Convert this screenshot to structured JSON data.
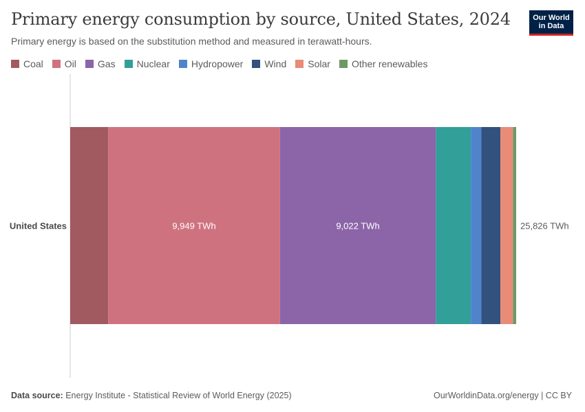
{
  "header": {
    "title": "Primary energy consumption by source, United States, 2024",
    "subtitle": "Primary energy is based on the substitution method and measured in terawatt-hours.",
    "logo_line1": "Our World",
    "logo_line2": "in Data"
  },
  "footer": {
    "source_label": "Data source:",
    "source_text": "Energy Institute - Statistical Review of World Energy (2025)",
    "right_text": "OurWorldinData.org/energy | CC BY"
  },
  "chart_data": {
    "type": "bar",
    "orientation": "horizontal",
    "stacked": true,
    "title": "Primary energy consumption by source, United States, 2024",
    "subtitle": "Primary energy is based on the substitution method and measured in terawatt-hours.",
    "unit": "TWh",
    "categories": [
      "United States"
    ],
    "total": 25826,
    "total_label": "25,826 TWh",
    "legend_position": "top",
    "grid": false,
    "series": [
      {
        "name": "Coal",
        "color": "#a15a60",
        "values": [
          2200
        ]
      },
      {
        "name": "Oil",
        "color": "#cf7280",
        "values": [
          9949
        ],
        "label": "9,949 TWh"
      },
      {
        "name": "Gas",
        "color": "#8c65a8",
        "values": [
          9022
        ],
        "label": "9,022 TWh"
      },
      {
        "name": "Nuclear",
        "color": "#329f98",
        "values": [
          2030
        ]
      },
      {
        "name": "Hydropower",
        "color": "#4f84cc",
        "values": [
          610
        ]
      },
      {
        "name": "Wind",
        "color": "#32517d",
        "values": [
          1100
        ]
      },
      {
        "name": "Solar",
        "color": "#e88b77",
        "values": [
          730
        ]
      },
      {
        "name": "Other renewables",
        "color": "#6d9a64",
        "values": [
          185
        ]
      }
    ]
  }
}
